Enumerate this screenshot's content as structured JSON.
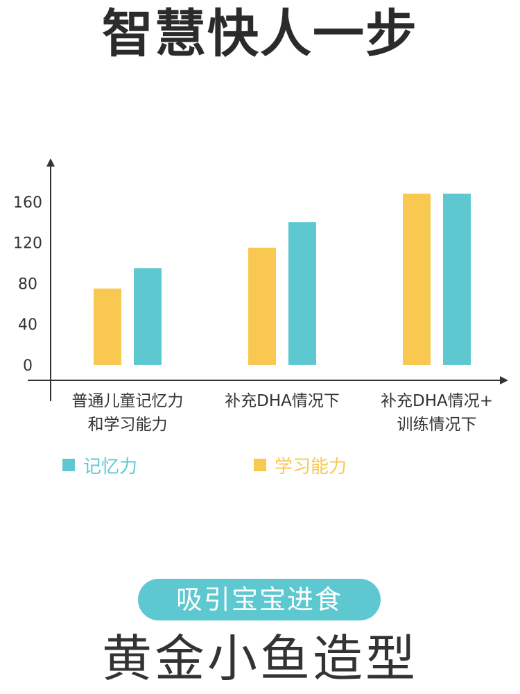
{
  "headline": "智慧快人一步",
  "colors": {
    "memory": "#5ec8d1",
    "learning": "#f8c850",
    "axis": "#333333",
    "text": "#333333"
  },
  "chart_data": {
    "type": "bar",
    "categories": [
      [
        "普通儿童记忆力",
        "和学习能力"
      ],
      [
        "补充DHA情况下"
      ],
      [
        "补充DHA情况+",
        "训练情况下"
      ]
    ],
    "series": [
      {
        "name": "学习能力",
        "color": "#f8c850",
        "values": [
          75,
          115,
          168
        ]
      },
      {
        "name": "记忆力",
        "color": "#5ec8d1",
        "values": [
          95,
          140,
          168
        ]
      }
    ],
    "yticks": [
      "0",
      "40",
      "80",
      "120",
      "160"
    ],
    "ytick_values": [
      0,
      40,
      80,
      120,
      160
    ],
    "ylim": [
      -15,
      215
    ],
    "xlabel": "",
    "ylabel": "",
    "legend_position": "bottom"
  },
  "legend": [
    {
      "label": "记忆力",
      "color": "#5ec8d1"
    },
    {
      "label": "学习能力",
      "color": "#f8c850"
    }
  ],
  "pill_text": "吸引宝宝进食",
  "subtitle": "黄金小鱼造型"
}
